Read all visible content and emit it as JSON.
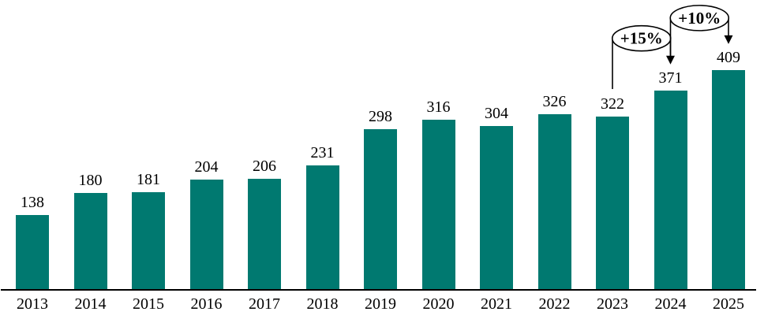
{
  "chart_data": {
    "type": "bar",
    "title": "",
    "xlabel": "",
    "ylabel": "",
    "categories": [
      "2013",
      "2014",
      "2015",
      "2016",
      "2017",
      "2018",
      "2019",
      "2020",
      "2021",
      "2022",
      "2023",
      "2024",
      "2025"
    ],
    "values": [
      138,
      180,
      181,
      204,
      206,
      231,
      298,
      316,
      304,
      326,
      322,
      371,
      409
    ],
    "ylim": [
      0,
      430
    ],
    "grid": false,
    "legend": null,
    "data_labels_shown": true,
    "bar_color": "#007970",
    "label_color": "#000000",
    "axis_color": "#000000",
    "annotations": [
      {
        "label": "+15%",
        "from": "2023",
        "to": "2024"
      },
      {
        "label": "+10%",
        "from": "2024",
        "to": "2025"
      }
    ]
  }
}
